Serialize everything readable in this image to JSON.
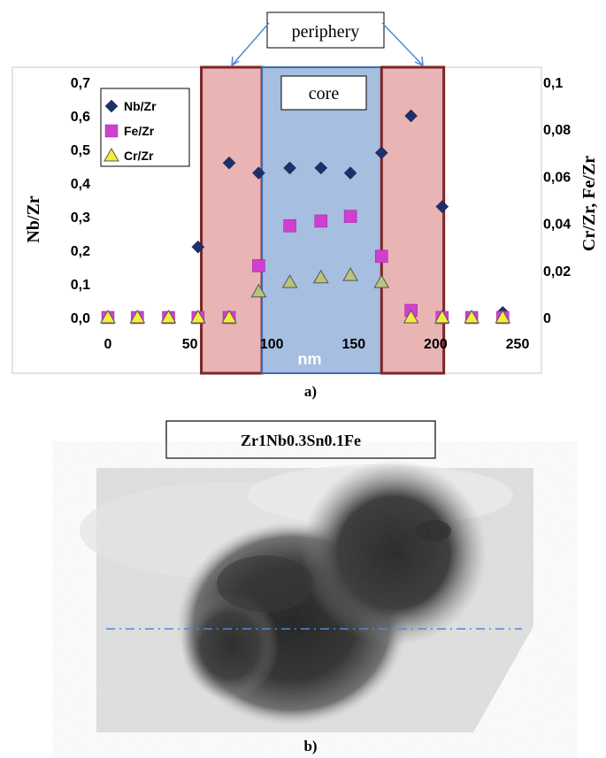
{
  "chart_data": {
    "type": "scatter",
    "xlabel": "nm",
    "ylabel_left": "Nb/Zr",
    "ylabel_right": "Cr/Zr, Fe/Zr",
    "xlim": [
      -20,
      250
    ],
    "ylim_left": [
      0,
      0.7
    ],
    "ylim_right": [
      0,
      0.1
    ],
    "x_ticks": [
      "0",
      "50",
      "100",
      "150",
      "200",
      "250"
    ],
    "y_left_ticks": [
      "0,0",
      "0,1",
      "0,2",
      "0,3",
      "0,4",
      "0,5",
      "0,6",
      "0,7"
    ],
    "y_right_ticks": [
      "0",
      "0,02",
      "0,04",
      "0,06",
      "0,08",
      "0,1"
    ],
    "grid": false,
    "legend_position": "top-left",
    "regions": [
      {
        "label": "periphery",
        "x_range": [
          57,
          94
        ],
        "color": "#e8b4b4"
      },
      {
        "label": "core",
        "x_range": [
          94,
          167
        ],
        "color": "#a6bedf"
      },
      {
        "label": "periphery",
        "x_range": [
          167,
          205
        ],
        "color": "#e8b4b4"
      }
    ],
    "series": [
      {
        "name": "Nb/Zr",
        "axis": "left",
        "marker": "diamond",
        "color": "#1f2f6b",
        "points": [
          [
            0,
            0
          ],
          [
            18,
            0
          ],
          [
            37,
            0
          ],
          [
            55,
            0.21
          ],
          [
            74,
            0.46
          ],
          [
            92,
            0.43
          ],
          [
            111,
            0.445
          ],
          [
            130,
            0.445
          ],
          [
            148,
            0.43
          ],
          [
            167,
            0.49
          ],
          [
            185,
            0.6
          ],
          [
            204,
            0.33
          ],
          [
            222,
            0
          ],
          [
            241,
            0.015
          ]
        ]
      },
      {
        "name": "Fe/Zr",
        "axis": "right",
        "marker": "square",
        "color": "#d040d0",
        "points": [
          [
            0,
            0
          ],
          [
            18,
            0
          ],
          [
            37,
            0
          ],
          [
            55,
            0
          ],
          [
            74,
            0
          ],
          [
            92,
            0.022
          ],
          [
            111,
            0.039
          ],
          [
            130,
            0.041
          ],
          [
            148,
            0.043
          ],
          [
            167,
            0.026
          ],
          [
            185,
            0.003
          ],
          [
            204,
            0
          ],
          [
            222,
            0
          ],
          [
            241,
            0
          ]
        ]
      },
      {
        "name": "Cr/Zr",
        "axis": "right",
        "marker": "triangle",
        "color": "#f4ee3a",
        "points": [
          [
            0,
            0
          ],
          [
            18,
            0
          ],
          [
            37,
            0
          ],
          [
            55,
            0
          ],
          [
            74,
            0
          ],
          [
            92,
            0.011
          ],
          [
            111,
            0.015
          ],
          [
            130,
            0.017
          ],
          [
            148,
            0.018
          ],
          [
            167,
            0.015
          ],
          [
            185,
            0
          ],
          [
            204,
            0
          ],
          [
            222,
            0
          ],
          [
            241,
            0
          ]
        ]
      }
    ]
  },
  "panel_a_label": "a)",
  "panel_b_label": "b)",
  "image_title": "Zr1Nb0.3Sn0.1Fe",
  "colors": {
    "guide_line": "#4f8ad6",
    "frame": "#7f2424"
  }
}
